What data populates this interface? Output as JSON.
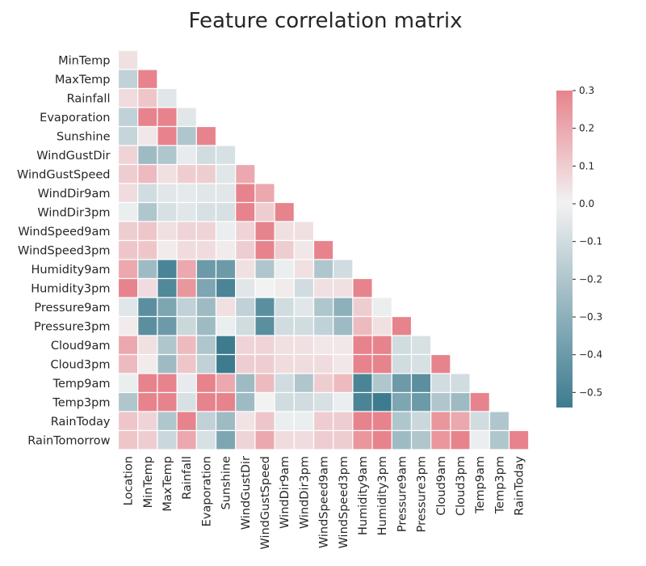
{
  "chart_data": {
    "type": "heatmap",
    "title": "Feature correlation matrix",
    "mask": "upper-triangle",
    "row_labels": [
      "MinTemp",
      "MaxTemp",
      "Rainfall",
      "Evaporation",
      "Sunshine",
      "WindGustDir",
      "WindGustSpeed",
      "WindDir9am",
      "WindDir3pm",
      "WindSpeed9am",
      "WindSpeed3pm",
      "Humidity9am",
      "Humidity3pm",
      "Pressure9am",
      "Pressure3pm",
      "Cloud9am",
      "Cloud3pm",
      "Temp9am",
      "Temp3pm",
      "RainToday",
      "RainTomorrow"
    ],
    "col_labels": [
      "Location",
      "MinTemp",
      "MaxTemp",
      "Rainfall",
      "Evaporation",
      "Sunshine",
      "WindGustDir",
      "WindGustSpeed",
      "WindDir9am",
      "WindDir3pm",
      "WindSpeed9am",
      "WindSpeed3pm",
      "Humidity9am",
      "Humidity3pm",
      "Pressure9am",
      "Pressure3pm",
      "Cloud9am",
      "Cloud3pm",
      "Temp9am",
      "Temp3pm",
      "RainToday"
    ],
    "values": [
      [
        0.05
      ],
      [
        -0.15,
        0.3
      ],
      [
        0.06,
        0.12,
        -0.05
      ],
      [
        -0.15,
        0.3,
        0.3,
        -0.05
      ],
      [
        -0.13,
        0.03,
        0.3,
        -0.2,
        0.3
      ],
      [
        0.08,
        -0.25,
        -0.2,
        -0.03,
        -0.1,
        -0.08
      ],
      [
        0.1,
        0.15,
        0.05,
        0.1,
        0.1,
        -0.05,
        0.2
      ],
      [
        0.06,
        -0.1,
        -0.05,
        -0.04,
        -0.05,
        -0.05,
        0.3,
        0.2
      ],
      [
        -0.02,
        -0.2,
        -0.08,
        -0.05,
        -0.08,
        -0.08,
        0.3,
        0.1,
        0.3
      ],
      [
        0.1,
        0.12,
        0.05,
        0.08,
        0.08,
        -0.02,
        0.08,
        0.3,
        0.05,
        0.05
      ],
      [
        0.12,
        0.12,
        0.02,
        0.06,
        0.06,
        0.02,
        0.1,
        0.3,
        0.1,
        0.03,
        0.3
      ],
      [
        0.2,
        -0.25,
        -0.5,
        0.2,
        -0.4,
        -0.4,
        0.05,
        -0.2,
        -0.02,
        0.05,
        -0.2,
        -0.1
      ],
      [
        0.3,
        0.06,
        -0.48,
        0.25,
        -0.35,
        -0.5,
        -0.05,
        0.0,
        0.02,
        -0.1,
        0.05,
        0.05,
        0.3
      ],
      [
        -0.05,
        -0.45,
        -0.35,
        -0.15,
        -0.25,
        0.05,
        -0.15,
        -0.45,
        -0.1,
        -0.05,
        -0.2,
        -0.3,
        0.1,
        -0.02
      ],
      [
        0.02,
        -0.45,
        -0.4,
        -0.12,
        -0.25,
        -0.02,
        -0.1,
        -0.45,
        -0.1,
        -0.1,
        -0.15,
        -0.25,
        0.15,
        0.05,
        0.3
      ],
      [
        0.2,
        0.05,
        -0.2,
        0.15,
        -0.2,
        -0.6,
        0.08,
        0.08,
        0.05,
        0.05,
        0.03,
        0.03,
        0.3,
        0.3,
        -0.1,
        -0.08
      ],
      [
        0.15,
        0.02,
        -0.25,
        0.12,
        -0.15,
        -0.6,
        0.1,
        0.1,
        0.06,
        0.06,
        0.06,
        0.03,
        0.3,
        0.3,
        -0.1,
        -0.08,
        0.3
      ],
      [
        -0.02,
        0.3,
        0.3,
        -0.03,
        0.3,
        0.2,
        -0.25,
        0.15,
        -0.1,
        -0.2,
        0.1,
        0.15,
        -0.5,
        -0.2,
        -0.4,
        -0.45,
        -0.1,
        -0.1
      ],
      [
        -0.2,
        0.3,
        0.3,
        -0.08,
        0.3,
        0.3,
        -0.25,
        0.0,
        -0.1,
        -0.1,
        -0.08,
        -0.02,
        -0.5,
        -0.55,
        -0.35,
        -0.4,
        -0.2,
        -0.25,
        0.3
      ],
      [
        0.12,
        0.08,
        -0.2,
        0.3,
        -0.15,
        -0.25,
        0.04,
        0.12,
        -0.02,
        -0.02,
        0.1,
        0.1,
        0.3,
        0.3,
        -0.2,
        -0.12,
        0.25,
        0.2,
        -0.1,
        -0.2
      ],
      [
        0.12,
        0.1,
        -0.12,
        0.2,
        -0.08,
        -0.35,
        0.08,
        0.2,
        0.06,
        0.06,
        0.1,
        0.1,
        0.25,
        0.3,
        -0.25,
        -0.2,
        0.25,
        0.3,
        -0.02,
        -0.2,
        0.3
      ]
    ],
    "colorbar": {
      "vmin": -0.54,
      "vmax": 0.3,
      "ticks": [
        0.3,
        0.2,
        0.1,
        0.0,
        -0.1,
        -0.2,
        -0.3,
        -0.4,
        -0.5
      ],
      "tick_labels": [
        "0.3",
        "0.2",
        "0.1",
        "0.0",
        "−0.1",
        "−0.2",
        "−0.3",
        "−0.4",
        "−0.5"
      ],
      "color_neg": "#3d7b8f",
      "color_mid": "#f2f2f2",
      "color_pos": "#e7838c"
    }
  }
}
